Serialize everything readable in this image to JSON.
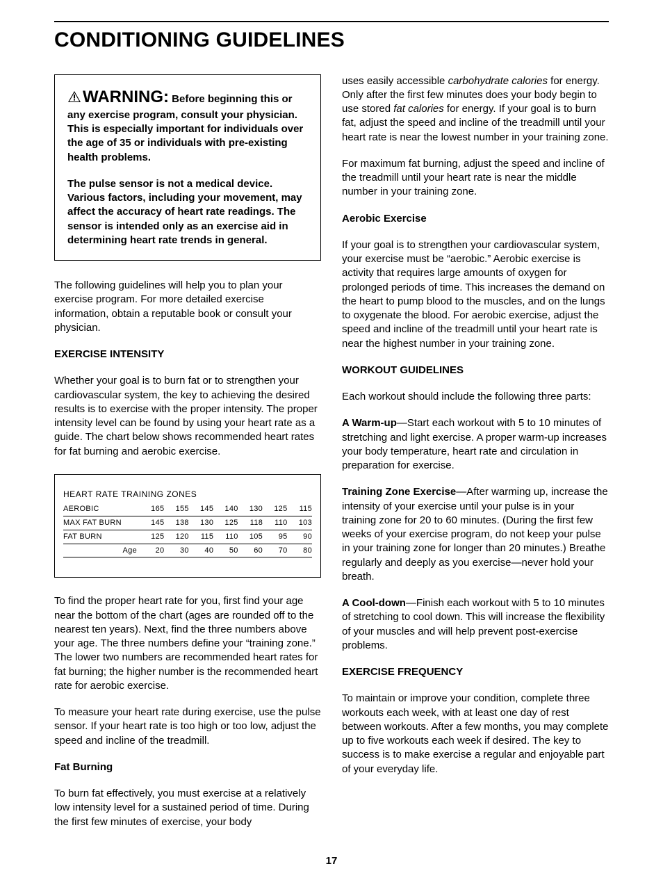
{
  "title": "CONDITIONING GUIDELINES",
  "warning": {
    "label": "WARNING:",
    "lead": "Before beginning this or any exercise program, consult your physician. This is especially important for individuals over the age of 35 or individuals with pre-existing health problems.",
    "sensor": "The pulse sensor is not a medical device. Various factors, including your movement, may affect the accuracy of heart rate readings. The sensor is intended only as an exercise aid in determining heart rate trends in general."
  },
  "intro": "The following guidelines will help you to plan your exercise program. For more detailed exercise information, obtain a reputable book or consult your physician.",
  "intensity": {
    "heading": "EXERCISE INTENSITY",
    "p1": "Whether your goal is to burn fat or to strengthen your cardiovascular system, the key to achieving the desired results is to exercise with the proper intensity. The proper intensity level can be found by using your heart rate as a guide. The chart below shows recommended heart rates for fat burning and aerobic exercise."
  },
  "hr_table": {
    "title": "HEART RATE TRAINING ZONES",
    "rows": [
      {
        "label": "AEROBIC",
        "vals": [
          "165",
          "155",
          "145",
          "140",
          "130",
          "125",
          "115"
        ]
      },
      {
        "label": "MAX FAT BURN",
        "vals": [
          "145",
          "138",
          "130",
          "125",
          "118",
          "110",
          "103"
        ]
      },
      {
        "label": "FAT BURN",
        "vals": [
          "125",
          "120",
          "115",
          "110",
          "105",
          "95",
          "90"
        ]
      }
    ],
    "age_label": "Age",
    "ages": [
      "20",
      "30",
      "40",
      "50",
      "60",
      "70",
      "80"
    ]
  },
  "after_table": {
    "p1": "To find the proper heart rate for you, first find your age near the bottom of the chart (ages are rounded off to the nearest ten years). Next, find the three numbers above your age. The three numbers define your “training zone.” The lower two numbers are recommended heart rates for fat burning; the higher number is the recommended heart rate for aerobic exercise.",
    "p2": "To measure your heart rate during exercise, use the pulse sensor. If your heart rate is too high or too low, adjust the speed and incline of the treadmill."
  },
  "fat": {
    "heading": "Fat Burning",
    "p_left": "To burn fat effectively, you must exercise at a relatively low intensity level for a sustained period of time. During the first few minutes of exercise, your body",
    "p_right_1a": "uses easily accessible ",
    "p_right_1_it1": "carbohydrate calories",
    "p_right_1b": " for energy. Only after the first few minutes does your body begin to use stored ",
    "p_right_1_it2": "fat calories",
    "p_right_1c": " for energy. If your goal is to burn fat, adjust the speed and incline of the treadmill until your heart rate is near the lowest number in your training zone.",
    "p_right_2": "For maximum fat burning, adjust the speed and incline of the treadmill until your heart rate is near the middle number in your training zone."
  },
  "aerobic": {
    "heading": "Aerobic Exercise",
    "p1": "If your goal is to strengthen your cardiovascular system, your exercise must be “aerobic.” Aerobic exercise is activity that requires large amounts of oxygen for prolonged periods of time. This increases the demand on the heart to pump blood to the muscles, and on the lungs to oxygenate the blood. For aerobic exercise, adjust the speed and incline of the treadmill until your heart rate is near the highest number in your training zone."
  },
  "workout": {
    "heading": "WORKOUT GUIDELINES",
    "intro": "Each workout should include the following three parts:",
    "warm_b": "A Warm-up",
    "warm": "—Start each workout with 5 to 10 minutes of stretching and light exercise. A proper warm-up increases your body temperature, heart rate and circulation in preparation for exercise.",
    "train_b": "Training Zone Exercise",
    "train": "—After warming up, increase the intensity of your exercise until your pulse is in your training zone for 20 to 60 minutes. (During the first few weeks of your exercise program, do not keep your pulse in your training zone for longer than 20 minutes.) Breathe regularly and deeply as you exercise—never hold your breath.",
    "cool_b": "A Cool-down",
    "cool": "—Finish each workout with 5 to 10 minutes of stretching to cool down. This will increase the flexibility of your muscles and will help prevent post-exercise problems."
  },
  "freq": {
    "heading": "EXERCISE FREQUENCY",
    "p1": "To maintain or improve your condition, complete three workouts each week, with at least one day of rest between workouts. After a few months, you may complete up to five workouts each week if desired. The key to success is to make exercise a regular and enjoyable part of your everyday life."
  },
  "page": "17"
}
